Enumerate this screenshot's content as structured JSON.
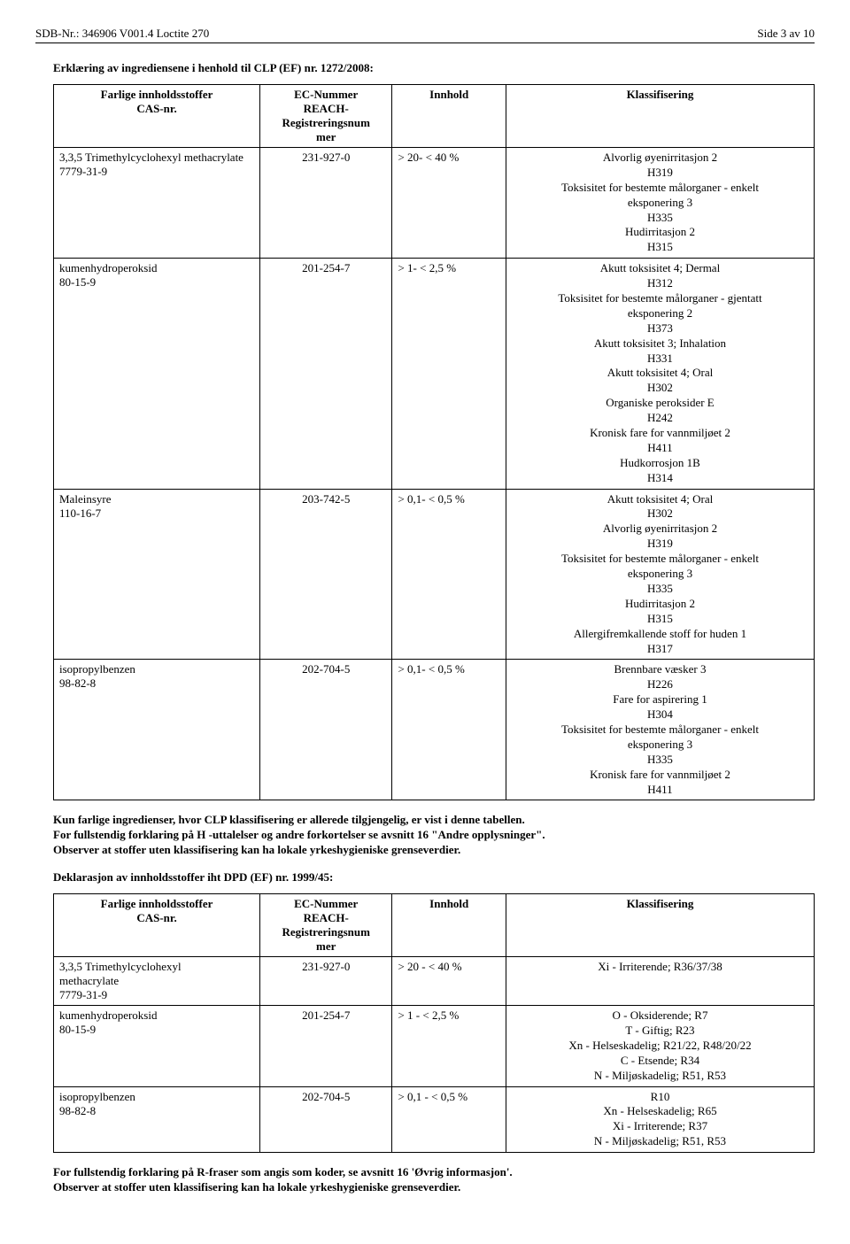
{
  "header": {
    "left": "SDB-Nr.: 346906   V001.4   Loctite 270",
    "right": "Side 3 av 10"
  },
  "section1": {
    "title": "Erklæring av ingrediensene i henhold til CLP (EF) nr. 1272/2008:",
    "columns": {
      "c1a": "Farlige innholdsstoffer",
      "c1b": "CAS-nr.",
      "c2a": "EC-Nummer",
      "c2b": "REACH-",
      "c2c": "Registreringsnum",
      "c2d": "mer",
      "c3": "Innhold",
      "c4": "Klassifisering"
    },
    "rows": [
      {
        "name1": "3,3,5 Trimethylcyclohexyl methacrylate",
        "name2": "7779-31-9",
        "ec": "231-927-0",
        "innhold": ">   20- <   40 %",
        "klass": [
          "Alvorlig øyenirritasjon 2",
          "H319",
          "Toksisitet for bestemte målorganer - enkelt",
          "eksponering 3",
          "H335",
          "Hudirritasjon 2",
          "H315"
        ]
      },
      {
        "name1": "kumenhydroperoksid",
        "name2": "80-15-9",
        "ec": "201-254-7",
        "innhold": ">    1- <    2,5 %",
        "klass": [
          "Akutt toksisitet 4;  Dermal",
          "H312",
          "Toksisitet for bestemte målorganer - gjentatt",
          "eksponering 2",
          "H373",
          "Akutt toksisitet 3;  Inhalation",
          "H331",
          "Akutt toksisitet 4;  Oral",
          "H302",
          "Organiske peroksider E",
          "H242",
          "Kronisk fare for vannmiljøet 2",
          "H411",
          "Hudkorrosjon 1B",
          "H314"
        ]
      },
      {
        "name1": "Maleinsyre",
        "name2": "110-16-7",
        "ec": "203-742-5",
        "innhold": ">    0,1- <    0,5 %",
        "klass": [
          "Akutt toksisitet 4;  Oral",
          "H302",
          "Alvorlig øyenirritasjon 2",
          "H319",
          "Toksisitet for bestemte målorganer - enkelt",
          "eksponering 3",
          "H335",
          "Hudirritasjon 2",
          "H315",
          "Allergifremkallende stoff for huden 1",
          "H317"
        ]
      },
      {
        "name1": "isopropylbenzen",
        "name2": "98-82-8",
        "ec": "202-704-5",
        "innhold": ">    0,1- <    0,5 %",
        "klass": [
          "Brennbare væsker 3",
          "H226",
          "Fare for aspirering 1",
          "H304",
          "Toksisitet for bestemte målorganer - enkelt",
          "eksponering 3",
          "H335",
          "Kronisk fare for vannmiljøet 2",
          "H411"
        ]
      }
    ]
  },
  "midtext": {
    "l1": "Kun farlige ingredienser, hvor CLP klassifisering er allerede tilgjengelig, er vist i denne tabellen.",
    "l2": "For fullstendig forklaring på H -uttalelser og andre forkortelser se avsnitt 16 \"Andre opplysninger\".",
    "l3": "Observer at stoffer uten klassifisering kan ha lokale yrkeshygieniske grenseverdier."
  },
  "section2title": "Deklarasjon av innholdsstoffer iht DPD (EF) nr. 1999/45:",
  "section2": {
    "columns": {
      "c1a": "Farlige innholdsstoffer",
      "c1b": "CAS-nr.",
      "c2a": "EC-Nummer",
      "c2b": "REACH-",
      "c2c": "Registreringsnum",
      "c2d": "mer",
      "c3": "Innhold",
      "c4": "Klassifisering"
    },
    "rows": [
      {
        "name1": "3,3,5 Trimethylcyclohexyl",
        "name2": "methacrylate",
        "name3": "7779-31-9",
        "ec": "231-927-0",
        "innhold": ">   20 - <   40  %",
        "klass": [
          "Xi - Irriterende;  R36/37/38"
        ]
      },
      {
        "name1": "kumenhydroperoksid",
        "name2": "80-15-9",
        "name3": "",
        "ec": "201-254-7",
        "innhold": ">    1 - <    2,5  %",
        "klass": [
          "O - Oksiderende;  R7",
          "T - Giftig;  R23",
          "Xn - Helseskadelig;  R21/22, R48/20/22",
          "C - Etsende;  R34",
          "N - Miljøskadelig;  R51, R53"
        ]
      },
      {
        "name1": "isopropylbenzen",
        "name2": "98-82-8",
        "name3": "",
        "ec": "202-704-5",
        "innhold": ">    0,1 - <    0,5  %",
        "klass": [
          "R10",
          "Xn - Helseskadelig;  R65",
          "Xi - Irriterende;  R37",
          "N - Miljøskadelig;  R51, R53"
        ]
      }
    ]
  },
  "bottomtext": {
    "l1": "For fullstendig forklaring på R-fraser som angis som koder, se avsnitt 16 'Øvrig informasjon'.",
    "l2": "Observer at stoffer uten klassifisering kan ha lokale yrkeshygieniske grenseverdier."
  }
}
